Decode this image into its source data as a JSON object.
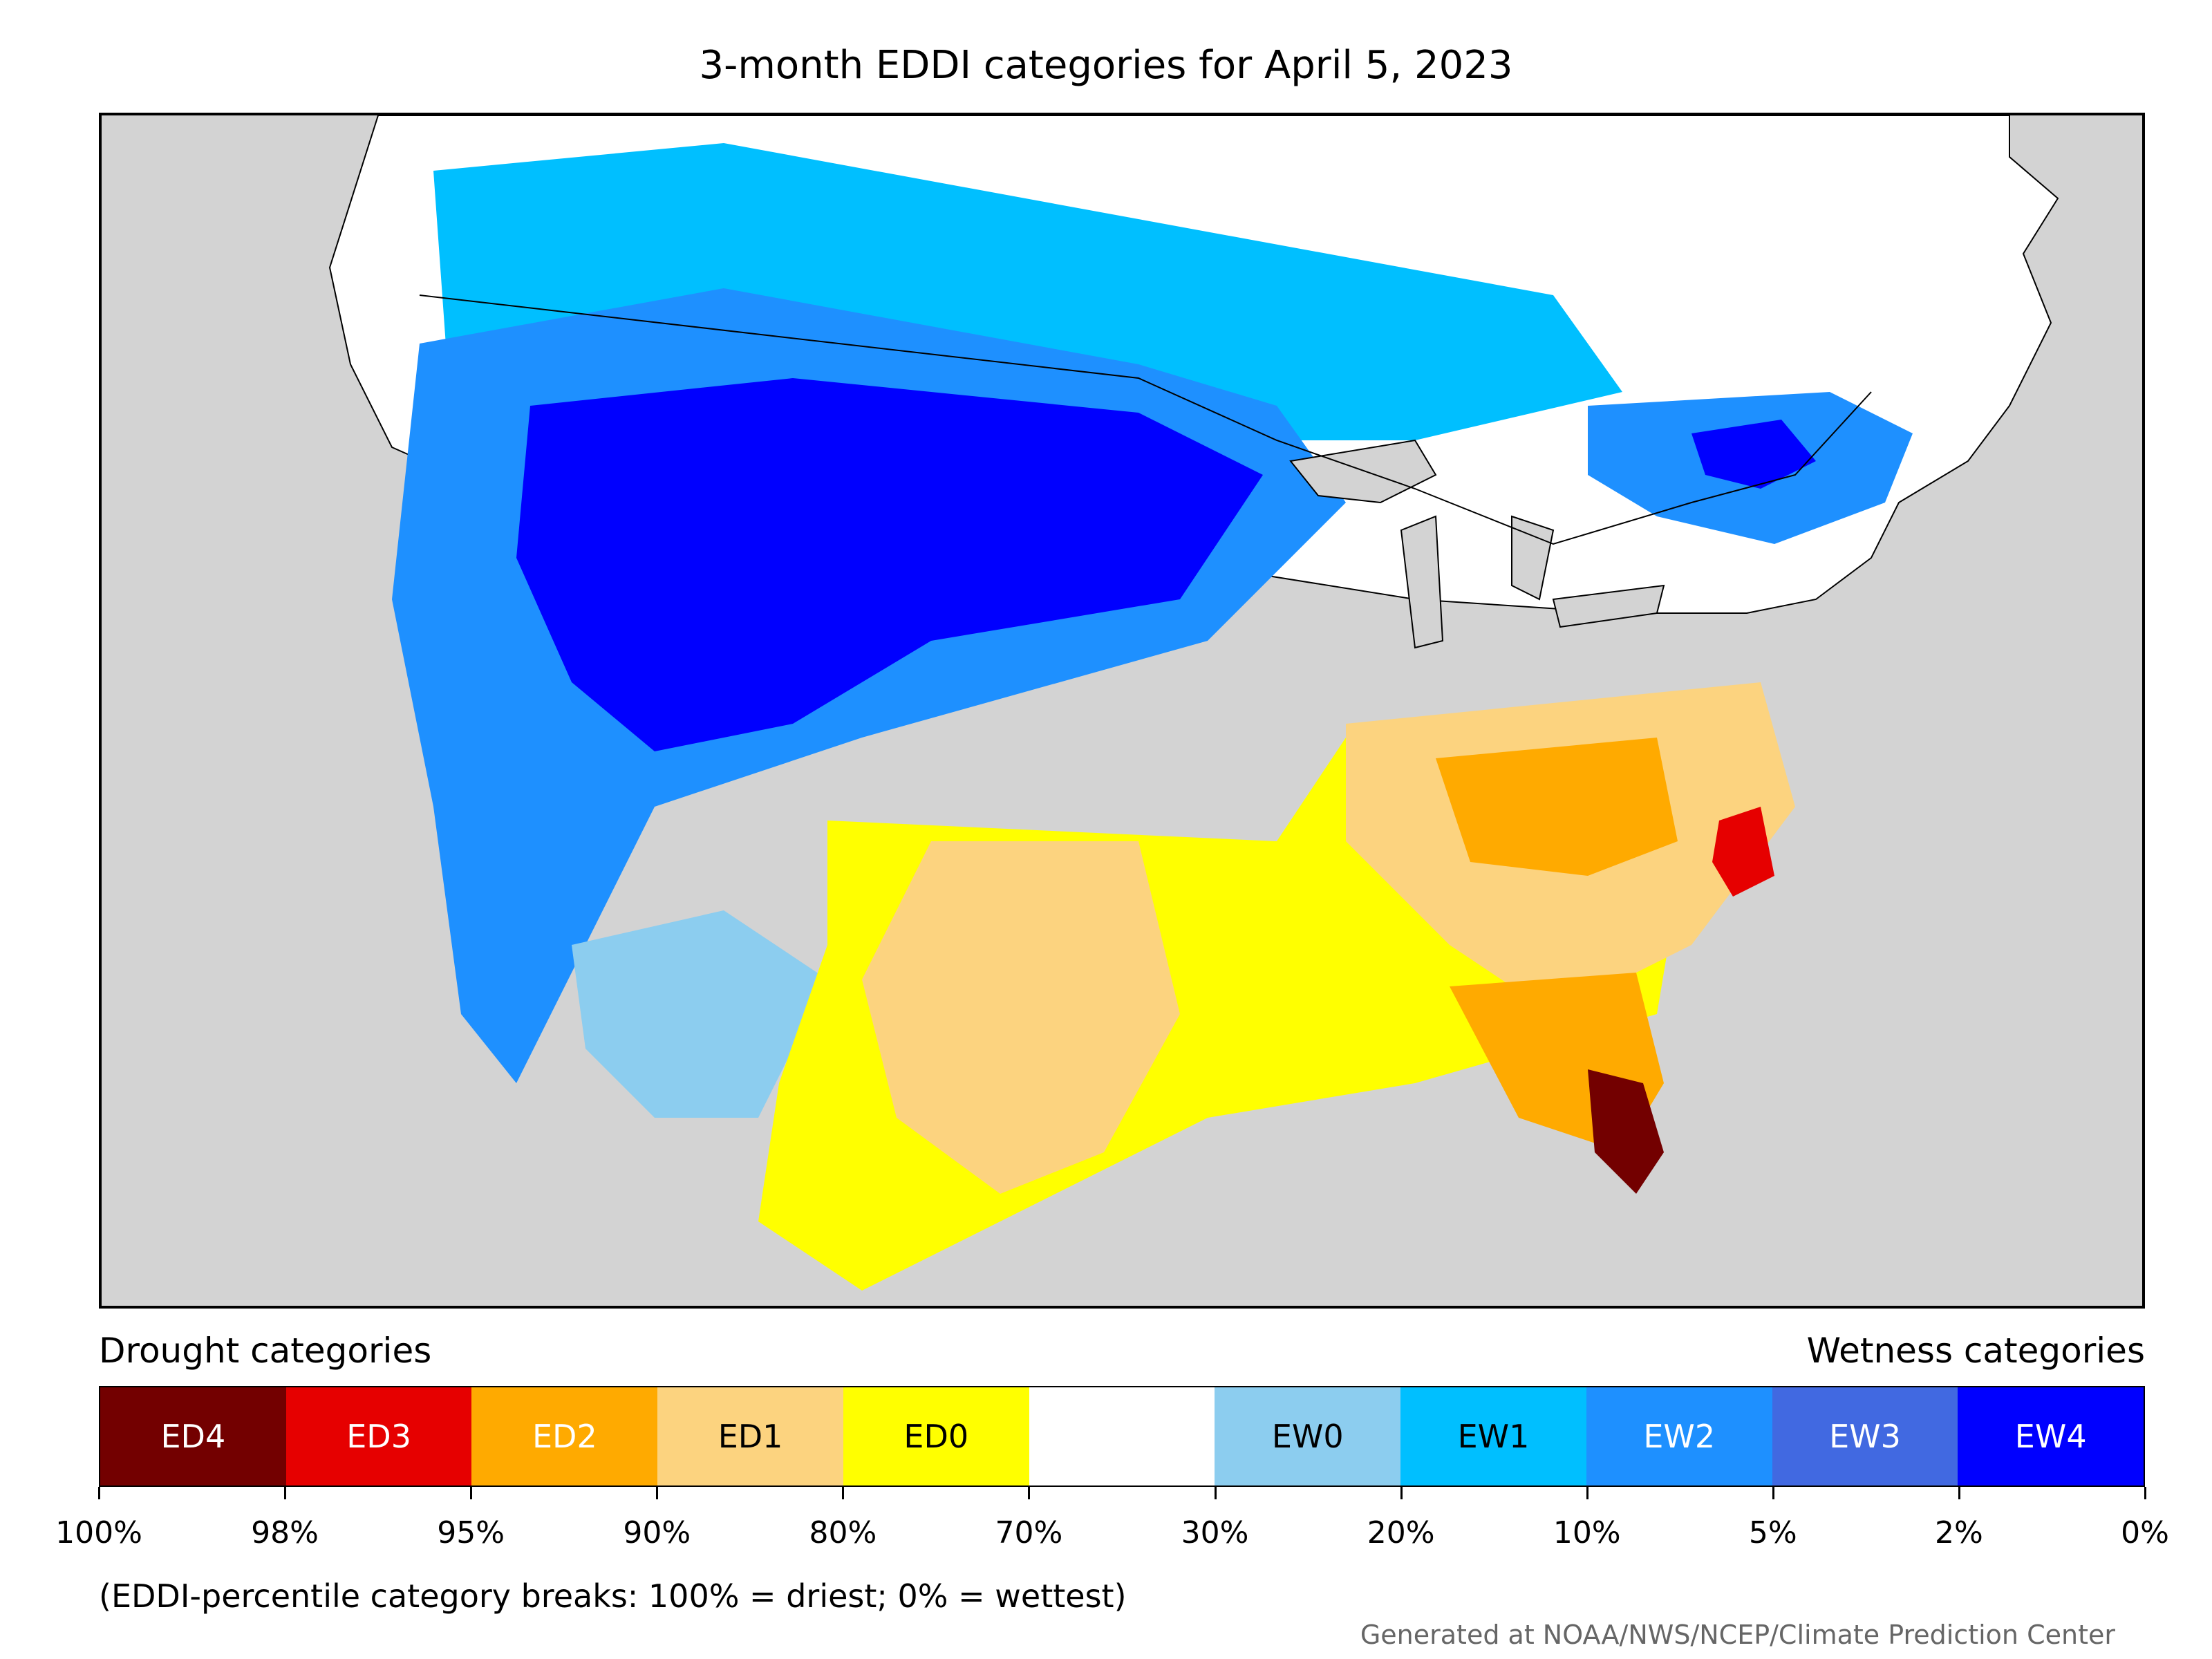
{
  "title": "3-month EDDI categories for April 5, 2023",
  "legend": {
    "left_title": "Drought categories",
    "right_title": "Wetness categories",
    "categories": [
      {
        "label": "ED4",
        "color": "#730000",
        "text_color": "#ffffff"
      },
      {
        "label": "ED3",
        "color": "#e60000",
        "text_color": "#ffffff"
      },
      {
        "label": "ED2",
        "color": "#ffaa00",
        "text_color": "#ffffff"
      },
      {
        "label": "ED1",
        "color": "#fcd37f",
        "text_color": "#000000"
      },
      {
        "label": "ED0",
        "color": "#ffff00",
        "text_color": "#000000"
      },
      {
        "label": "",
        "color": "#ffffff",
        "text_color": "#000000"
      },
      {
        "label": "EW0",
        "color": "#8ccdef",
        "text_color": "#000000"
      },
      {
        "label": "EW1",
        "color": "#00bfff",
        "text_color": "#000000"
      },
      {
        "label": "EW2",
        "color": "#1e90ff",
        "text_color": "#ffffff"
      },
      {
        "label": "EW3",
        "color": "#4169e1",
        "text_color": "#ffffff"
      },
      {
        "label": "EW4",
        "color": "#0000ff",
        "text_color": "#ffffff"
      }
    ],
    "breaks": [
      "100%",
      "98%",
      "95%",
      "90%",
      "80%",
      "70%",
      "30%",
      "20%",
      "10%",
      "5%",
      "2%",
      "0%"
    ]
  },
  "note": "(EDDI-percentile category breaks: 100% = driest; 0% = wettest)",
  "credit": "Generated at NOAA/NWS/NCEP/Climate Prediction Center"
}
